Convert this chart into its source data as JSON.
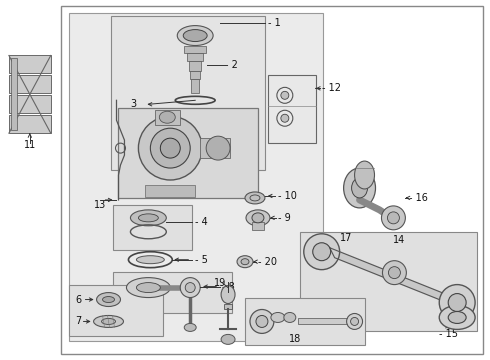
{
  "bg": "#ffffff",
  "gray_light": "#d8d8d8",
  "gray_mid": "#b8b8b8",
  "gray_dark": "#888888",
  "line_color": "#333333",
  "text_color": "#111111",
  "box_bg": "#e0e0e0",
  "white": "#f8f8f8"
}
